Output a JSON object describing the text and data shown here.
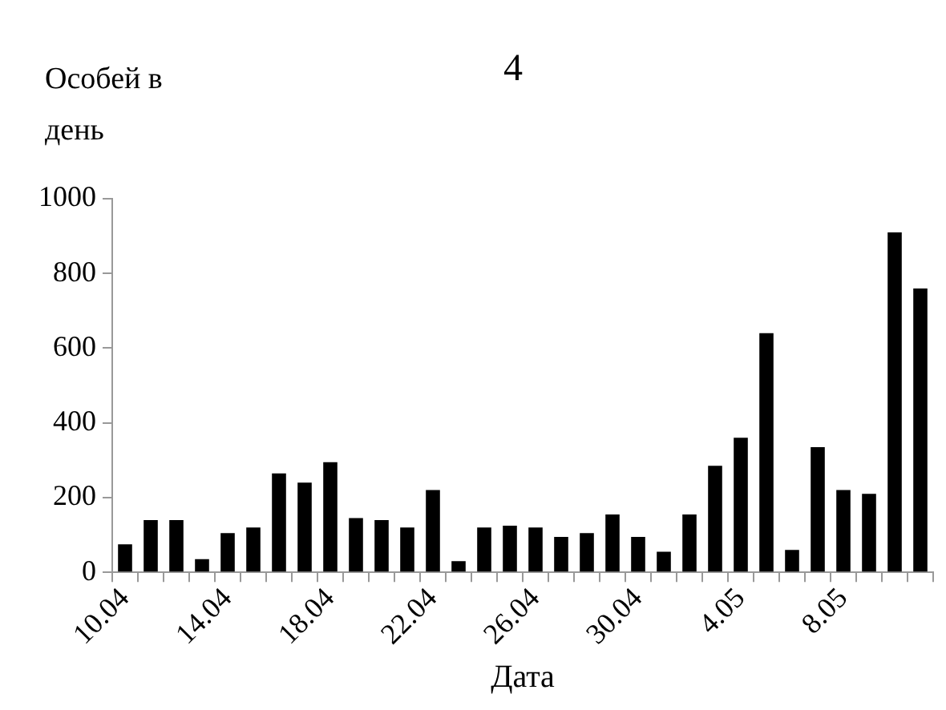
{
  "chart_data": {
    "type": "bar",
    "title": "4",
    "ylabel": "Особей в день",
    "xlabel": "Дата",
    "categories": [
      "10.04",
      null,
      null,
      null,
      "14.04",
      null,
      null,
      null,
      "18.04",
      null,
      null,
      null,
      "22.04",
      null,
      null,
      null,
      "26.04",
      null,
      null,
      null,
      "30.04",
      null,
      null,
      null,
      "4.05",
      null,
      null,
      null,
      "8.05",
      null,
      null,
      null
    ],
    "values": [
      75,
      140,
      140,
      35,
      105,
      120,
      265,
      240,
      295,
      145,
      140,
      120,
      220,
      30,
      120,
      125,
      120,
      95,
      105,
      155,
      95,
      55,
      155,
      285,
      360,
      640,
      60,
      335,
      220,
      210,
      910,
      760
    ],
    "color": "#000000",
    "ylim": [
      0,
      1000
    ],
    "yticks": [
      0,
      200,
      400,
      600,
      800,
      1000
    ],
    "grid": false,
    "legend": false
  }
}
